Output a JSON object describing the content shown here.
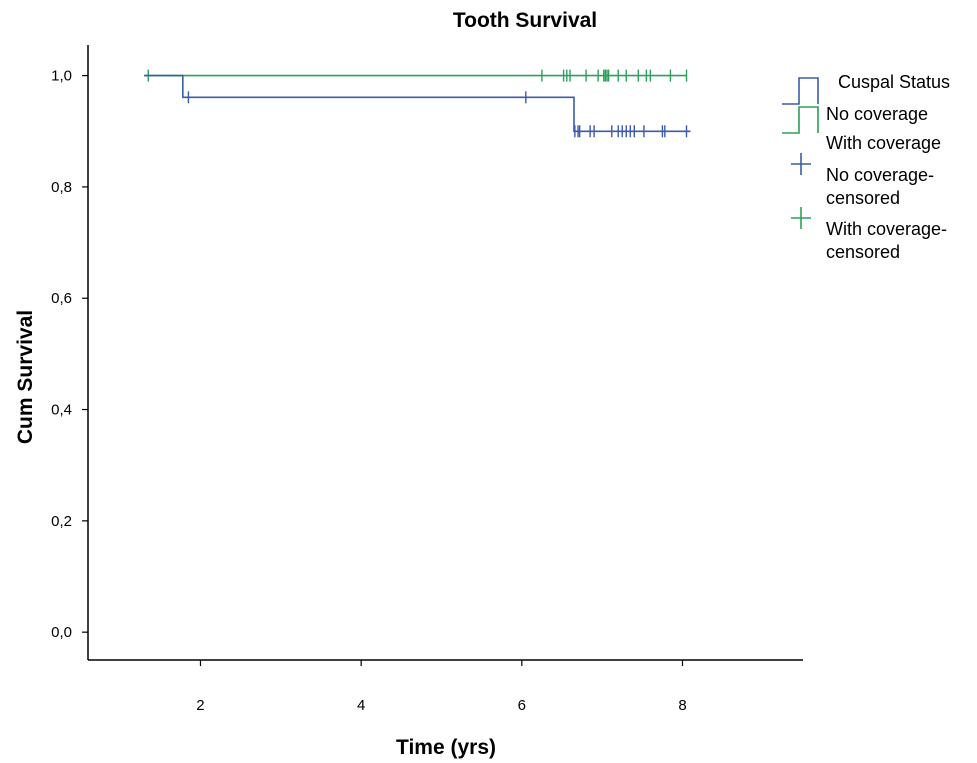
{
  "chart_data": {
    "type": "line",
    "subtype": "kaplan-meier",
    "title": "Tooth Survival",
    "xlabel": "Time (yrs)",
    "ylabel": "Cum Survival",
    "xlim": [
      0.6,
      9.5
    ],
    "ylim": [
      -0.05,
      1.055
    ],
    "x_ticks": [
      2,
      4,
      6,
      8
    ],
    "x_tick_labels": [
      "2",
      "4",
      "6",
      "8"
    ],
    "y_ticks": [
      0.0,
      0.2,
      0.4,
      0.6,
      0.8,
      1.0
    ],
    "y_tick_labels": [
      "0,0",
      "0,2",
      "0,4",
      "0,6",
      "0,8",
      "1,0"
    ],
    "grid": false,
    "legend": {
      "title": "Cuspal Status",
      "placement": "top-right",
      "items": [
        {
          "label": "No coverage",
          "kind": "step",
          "series": 0
        },
        {
          "label": "With coverage",
          "kind": "step",
          "series": 1
        },
        {
          "label": "No coverage-censored",
          "label_lines": [
            "No coverage-",
            "censored"
          ],
          "kind": "censor",
          "series": 0
        },
        {
          "label": "With coverage-censored",
          "label_lines": [
            "With coverage-",
            "censored"
          ],
          "kind": "censor",
          "series": 1
        }
      ]
    },
    "series": [
      {
        "name": "No coverage",
        "color": "#3b5bab",
        "steps": [
          [
            1.3,
            1.0
          ],
          [
            1.78,
            0.961
          ],
          [
            6.65,
            0.9
          ]
        ],
        "end_x": 8.1,
        "censored": [
          {
            "x": 1.85,
            "y": 0.961
          },
          {
            "x": 6.05,
            "y": 0.961
          },
          {
            "x": 6.66,
            "y": 0.9
          },
          {
            "x": 6.7,
            "y": 0.9
          },
          {
            "x": 6.72,
            "y": 0.9
          },
          {
            "x": 6.85,
            "y": 0.9
          },
          {
            "x": 6.9,
            "y": 0.9
          },
          {
            "x": 7.12,
            "y": 0.9
          },
          {
            "x": 7.2,
            "y": 0.9
          },
          {
            "x": 7.25,
            "y": 0.9
          },
          {
            "x": 7.3,
            "y": 0.9
          },
          {
            "x": 7.35,
            "y": 0.9
          },
          {
            "x": 7.4,
            "y": 0.9
          },
          {
            "x": 7.52,
            "y": 0.9
          },
          {
            "x": 7.75,
            "y": 0.9
          },
          {
            "x": 7.78,
            "y": 0.9
          },
          {
            "x": 8.05,
            "y": 0.9
          }
        ]
      },
      {
        "name": "With coverage",
        "color": "#2ca05a",
        "steps": [
          [
            1.3,
            1.0
          ]
        ],
        "end_x": 8.05,
        "censored": [
          {
            "x": 1.35,
            "y": 1.0
          },
          {
            "x": 6.25,
            "y": 1.0
          },
          {
            "x": 6.52,
            "y": 1.0
          },
          {
            "x": 6.56,
            "y": 1.0
          },
          {
            "x": 6.6,
            "y": 1.0
          },
          {
            "x": 6.8,
            "y": 1.0
          },
          {
            "x": 6.95,
            "y": 1.0
          },
          {
            "x": 7.02,
            "y": 1.0
          },
          {
            "x": 7.04,
            "y": 1.0
          },
          {
            "x": 7.06,
            "y": 1.0
          },
          {
            "x": 7.08,
            "y": 1.0
          },
          {
            "x": 7.2,
            "y": 1.0
          },
          {
            "x": 7.3,
            "y": 1.0
          },
          {
            "x": 7.45,
            "y": 1.0
          },
          {
            "x": 7.55,
            "y": 1.0
          },
          {
            "x": 7.6,
            "y": 1.0
          },
          {
            "x": 7.85,
            "y": 1.0
          },
          {
            "x": 8.05,
            "y": 1.0
          }
        ]
      }
    ]
  }
}
